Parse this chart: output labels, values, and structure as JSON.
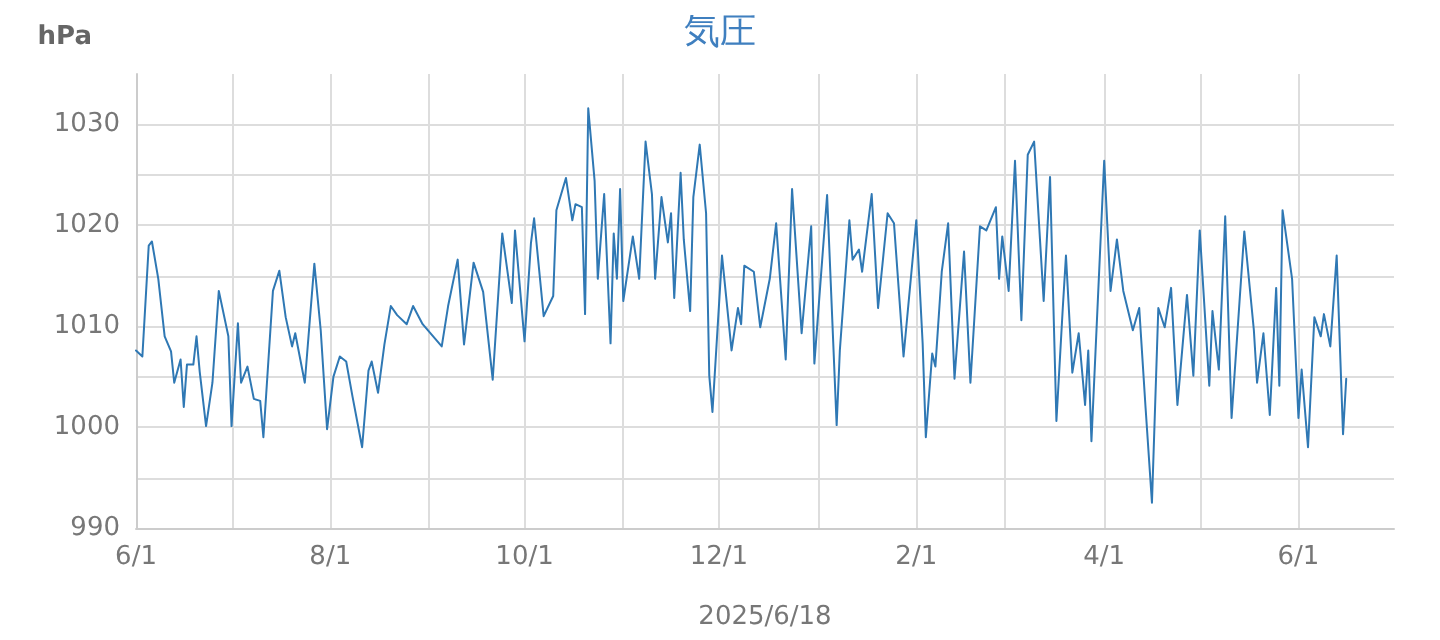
{
  "chart_data": {
    "type": "line",
    "title": "気圧",
    "ylabel": "hPa",
    "xlabel": "2025/6/18",
    "xlim": [
      "2024-06-01",
      "2025-07-01"
    ],
    "xticks": [
      {
        "value": "2024-06-01",
        "label": "6/1"
      },
      {
        "value": "2024-07-01",
        "label": null
      },
      {
        "value": "2024-08-01",
        "label": "8/1"
      },
      {
        "value": "2024-09-01",
        "label": null
      },
      {
        "value": "2024-10-01",
        "label": "10/1"
      },
      {
        "value": "2024-11-01",
        "label": null
      },
      {
        "value": "2024-12-01",
        "label": "12/1"
      },
      {
        "value": "2025-01-01",
        "label": null
      },
      {
        "value": "2025-02-01",
        "label": "2/1"
      },
      {
        "value": "2025-03-01",
        "label": null
      },
      {
        "value": "2025-04-01",
        "label": "4/1"
      },
      {
        "value": "2025-05-01",
        "label": null
      },
      {
        "value": "2025-06-01",
        "label": "6/1"
      }
    ],
    "ylim": [
      990,
      1035
    ],
    "yticks": [
      990,
      {
        "value": 995,
        "label": null
      },
      1000,
      {
        "value": 1005,
        "label": null
      },
      1010,
      {
        "value": 1015,
        "label": null
      },
      1020,
      {
        "value": 1025,
        "label": null
      },
      1030
    ],
    "grid": true,
    "marker": "none",
    "line_style": "solid",
    "x": [
      "2024-06-01",
      "2024-06-03",
      "2024-06-05",
      "2024-06-06",
      "2024-06-08",
      "2024-06-10",
      "2024-06-12",
      "2024-06-13",
      "2024-06-15",
      "2024-06-16",
      "2024-06-17",
      "2024-06-19",
      "2024-06-20",
      "2024-06-21",
      "2024-06-23",
      "2024-06-25",
      "2024-06-27",
      "2024-06-30",
      "2024-07-01",
      "2024-07-03",
      "2024-07-04",
      "2024-07-06",
      "2024-07-08",
      "2024-07-10",
      "2024-07-11",
      "2024-07-14",
      "2024-07-16",
      "2024-07-18",
      "2024-07-20",
      "2024-07-21",
      "2024-07-24",
      "2024-07-27",
      "2024-07-29",
      "2024-07-31",
      "2024-08-02",
      "2024-08-04",
      "2024-08-06",
      "2024-08-08",
      "2024-08-11",
      "2024-08-13",
      "2024-08-14",
      "2024-08-16",
      "2024-08-18",
      "2024-08-20",
      "2024-08-22",
      "2024-08-25",
      "2024-08-27",
      "2024-08-30",
      "2024-09-05",
      "2024-09-07",
      "2024-09-10",
      "2024-09-12",
      "2024-09-15",
      "2024-09-18",
      "2024-09-21",
      "2024-09-24",
      "2024-09-27",
      "2024-09-28",
      "2024-10-01",
      "2024-10-03",
      "2024-10-04",
      "2024-10-07",
      "2024-10-10",
      "2024-10-11",
      "2024-10-14",
      "2024-10-16",
      "2024-10-17",
      "2024-10-19",
      "2024-10-20",
      "2024-10-21",
      "2024-10-23",
      "2024-10-24",
      "2024-10-26",
      "2024-10-28",
      "2024-10-29",
      "2024-10-30",
      "2024-10-31",
      "2024-11-01",
      "2024-11-04",
      "2024-11-06",
      "2024-11-08",
      "2024-11-10",
      "2024-11-11",
      "2024-11-13",
      "2024-11-15",
      "2024-11-16",
      "2024-11-17",
      "2024-11-19",
      "2024-11-20",
      "2024-11-22",
      "2024-11-23",
      "2024-11-25",
      "2024-11-27",
      "2024-11-28",
      "2024-11-29",
      "2024-12-02",
      "2024-12-05",
      "2024-12-07",
      "2024-12-08",
      "2024-12-09",
      "2024-12-12",
      "2024-12-14",
      "2024-12-17",
      "2024-12-19",
      "2024-12-22",
      "2024-12-24",
      "2024-12-27",
      "2024-12-30",
      "2024-12-31",
      "2025-01-02",
      "2025-01-04",
      "2025-01-07",
      "2025-01-08",
      "2025-01-11",
      "2025-01-12",
      "2025-01-14",
      "2025-01-15",
      "2025-01-18",
      "2025-01-20",
      "2025-01-23",
      "2025-01-25",
      "2025-01-28",
      "2025-02-01",
      "2025-02-03",
      "2025-02-04",
      "2025-02-06",
      "2025-02-07",
      "2025-02-09",
      "2025-02-11",
      "2025-02-13",
      "2025-02-16",
      "2025-02-18",
      "2025-02-21",
      "2025-02-23",
      "2025-02-26",
      "2025-02-27",
      "2025-02-28",
      "2025-03-02",
      "2025-03-04",
      "2025-03-06",
      "2025-03-08",
      "2025-03-10",
      "2025-03-13",
      "2025-03-15",
      "2025-03-17",
      "2025-03-19",
      "2025-03-20",
      "2025-03-22",
      "2025-03-24",
      "2025-03-26",
      "2025-03-27",
      "2025-03-28",
      "2025-04-01",
      "2025-04-03",
      "2025-04-05",
      "2025-04-07",
      "2025-04-10",
      "2025-04-12",
      "2025-04-14",
      "2025-04-16",
      "2025-04-18",
      "2025-04-20",
      "2025-04-22",
      "2025-04-24",
      "2025-04-27",
      "2025-04-29",
      "2025-05-01",
      "2025-05-04",
      "2025-05-05",
      "2025-05-07",
      "2025-05-09",
      "2025-05-11",
      "2025-05-15",
      "2025-05-18",
      "2025-05-19",
      "2025-05-21",
      "2025-05-23",
      "2025-05-25",
      "2025-05-26",
      "2025-05-27",
      "2025-05-30",
      "2025-06-01",
      "2025-06-02",
      "2025-06-04",
      "2025-06-06",
      "2025-06-08",
      "2025-06-09",
      "2025-06-11",
      "2025-06-13",
      "2025-06-15",
      "2025-06-16"
    ],
    "series": [
      {
        "color": "#2f78b4",
        "values": [
          1007.6,
          1007,
          1018,
          1018.4,
          1014.7,
          1009,
          1007.5,
          1004.4,
          1006.7,
          1002,
          1006.2,
          1006.2,
          1009,
          1005.5,
          1000.1,
          1004.4,
          1013.5,
          1009,
          1000.1,
          1010.3,
          1004.4,
          1006,
          1002.8,
          1002.6,
          999,
          1013.5,
          1015.5,
          1010.9,
          1008,
          1009.3,
          1004.4,
          1016.2,
          1009.6,
          999.8,
          1005,
          1007,
          1006.5,
          1003,
          998,
          1005.6,
          1006.5,
          1003.4,
          1008.2,
          1012,
          1011.1,
          1010.2,
          1012,
          1010.2,
          1008,
          1012,
          1016.6,
          1008.2,
          1016.3,
          1013.4,
          1004.7,
          1019.2,
          1012.3,
          1019.5,
          1008.5,
          1018.2,
          1020.7,
          1011,
          1013,
          1021.5,
          1024.7,
          1020.5,
          1022.1,
          1021.8,
          1011.2,
          1031.6,
          1024.4,
          1014.7,
          1023.1,
          1008.3,
          1019.2,
          1014.7,
          1023.6,
          1012.5,
          1018.9,
          1014.7,
          1028.3,
          1023.1,
          1014.7,
          1022.8,
          1018.3,
          1021.2,
          1012.8,
          1025.2,
          1018.6,
          1011.5,
          1022.8,
          1028,
          1021.2,
          1005.1,
          1001.5,
          1017,
          1007.6,
          1011.8,
          1010.2,
          1016,
          1015.4,
          1009.9,
          1014.7,
          1020.2,
          1006.7,
          1023.6,
          1009.3,
          1019.9,
          1006.3,
          1014.7,
          1023,
          1000.2,
          1007.6,
          1020.5,
          1016.6,
          1017.6,
          1015.4,
          1023.1,
          1011.8,
          1021.2,
          1020.2,
          1007,
          1020.5,
          1008.3,
          999,
          1007.3,
          1006,
          1015.4,
          1020.2,
          1004.8,
          1017.4,
          1004.4,
          1019.9,
          1019.5,
          1021.8,
          1014.7,
          1018.9,
          1013.5,
          1026.4,
          1010.6,
          1027,
          1028.3,
          1012.5,
          1024.8,
          1000.6,
          1011.8,
          1017,
          1005.4,
          1009.3,
          1002.2,
          1007.6,
          998.6,
          1026.4,
          1013.5,
          1018.6,
          1013.5,
          1009.6,
          1011.8,
          1001.9,
          992.5,
          1011.8,
          1009.9,
          1013.8,
          1002.2,
          1013.1,
          1005.1,
          1019.5,
          1004.1,
          1011.5,
          1005.7,
          1020.9,
          1000.9,
          1019.4,
          1009.6,
          1004.4,
          1009.3,
          1001.2,
          1013.8,
          1004.1,
          1021.5,
          1014.7,
          1000.9,
          1005.7,
          998,
          1010.9,
          1009,
          1011.2,
          1008,
          1017,
          999.3,
          1004.8
        ]
      }
    ]
  }
}
